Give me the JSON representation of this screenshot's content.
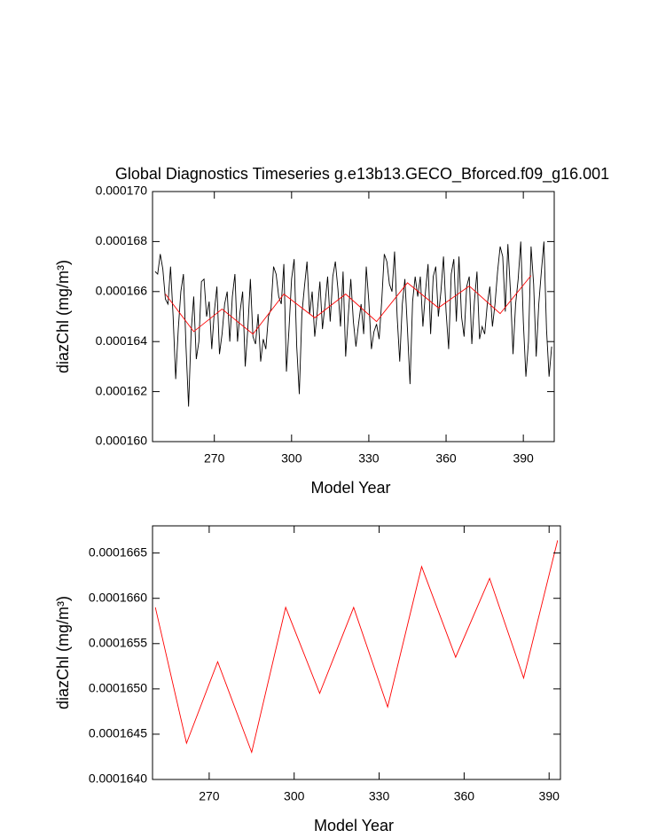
{
  "chart_data": [
    {
      "type": "line",
      "title": "Global Diagnostics Timeseries g.e13b13.GECO_Bforced.f09_g16.001",
      "xlabel": "Model Year",
      "ylabel": "diazChl (mg/m³)",
      "xlim": [
        246,
        402
      ],
      "xticks": [
        270,
        300,
        330,
        360,
        390
      ],
      "ylim": [
        0.00016,
        0.00017
      ],
      "yticks": [
        {
          "value": 0.00016,
          "label": "0.000160"
        },
        0.000162,
        0.000164,
        0.000166,
        0.000168,
        {
          "value": 0.00017,
          "label": "0.000170"
        }
      ],
      "series": [
        {
          "color": "#000000",
          "x": [
            247,
            248,
            249,
            250,
            251,
            252,
            253,
            254,
            255,
            256,
            257,
            258,
            259,
            260,
            261,
            262,
            263,
            264,
            265,
            266,
            267,
            268,
            269,
            270,
            271,
            272,
            273,
            274,
            275,
            276,
            277,
            278,
            279,
            280,
            281,
            282,
            283,
            284,
            285,
            286,
            287,
            288,
            289,
            290,
            291,
            292,
            293,
            294,
            295,
            296,
            297,
            298,
            299,
            300,
            301,
            302,
            303,
            304,
            305,
            306,
            307,
            308,
            309,
            310,
            311,
            312,
            313,
            314,
            315,
            316,
            317,
            318,
            319,
            320,
            321,
            322,
            323,
            324,
            325,
            326,
            327,
            328,
            329,
            330,
            331,
            332,
            333,
            334,
            335,
            336,
            337,
            338,
            339,
            340,
            341,
            342,
            343,
            344,
            345,
            346,
            347,
            348,
            349,
            350,
            351,
            352,
            353,
            354,
            355,
            356,
            357,
            358,
            359,
            360,
            361,
            362,
            363,
            364,
            365,
            366,
            367,
            368,
            369,
            370,
            371,
            372,
            373,
            374,
            375,
            376,
            377,
            378,
            379,
            380,
            381,
            382,
            383,
            384,
            385,
            386,
            387,
            388,
            389,
            390,
            391,
            392,
            393,
            394,
            395,
            396,
            397,
            398,
            399,
            400,
            401
          ],
          "values": [
            0.0001668,
            0.0001667,
            0.0001675,
            0.0001669,
            0.0001657,
            0.0001655,
            0.000167,
            0.000165,
            0.0001625,
            0.0001645,
            0.000166,
            0.0001667,
            0.0001638,
            0.0001614,
            0.0001644,
            0.0001658,
            0.0001633,
            0.000164,
            0.0001664,
            0.0001665,
            0.000165,
            0.0001656,
            0.0001637,
            0.0001652,
            0.0001662,
            0.0001635,
            0.0001643,
            0.0001655,
            0.000166,
            0.000164,
            0.0001658,
            0.0001667,
            0.000164,
            0.0001652,
            0.000166,
            0.000163,
            0.0001645,
            0.0001665,
            0.0001642,
            0.0001639,
            0.0001651,
            0.0001632,
            0.0001641,
            0.0001637,
            0.000165,
            0.0001653,
            0.000167,
            0.0001667,
            0.0001658,
            0.0001655,
            0.0001671,
            0.0001628,
            0.0001645,
            0.0001665,
            0.0001673,
            0.0001638,
            0.0001619,
            0.0001651,
            0.0001662,
            0.0001672,
            0.0001651,
            0.000166,
            0.0001642,
            0.0001652,
            0.0001664,
            0.0001645,
            0.0001655,
            0.0001666,
            0.0001648,
            0.0001666,
            0.0001672,
            0.0001661,
            0.0001646,
            0.0001668,
            0.0001634,
            0.000165,
            0.0001665,
            0.0001648,
            0.0001638,
            0.0001647,
            0.0001655,
            0.0001643,
            0.000167,
            0.0001656,
            0.0001637,
            0.0001644,
            0.0001647,
            0.0001641,
            0.0001656,
            0.0001675,
            0.0001672,
            0.0001663,
            0.000166,
            0.0001676,
            0.000165,
            0.0001632,
            0.0001655,
            0.0001665,
            0.0001645,
            0.0001623,
            0.0001656,
            0.0001666,
            0.0001658,
            0.0001666,
            0.0001646,
            0.000166,
            0.0001671,
            0.0001643,
            0.0001666,
            0.000167,
            0.000165,
            0.000166,
            0.0001674,
            0.0001652,
            0.0001637,
            0.0001667,
            0.0001673,
            0.0001648,
            0.0001674,
            0.000165,
            0.0001642,
            0.0001662,
            0.0001666,
            0.0001639,
            0.0001656,
            0.0001668,
            0.0001641,
            0.0001646,
            0.0001643,
            0.0001655,
            0.0001662,
            0.0001646,
            0.0001655,
            0.0001668,
            0.0001678,
            0.0001674,
            0.0001652,
            0.0001679,
            0.000166,
            0.0001635,
            0.0001655,
            0.0001665,
            0.000168,
            0.0001648,
            0.0001626,
            0.000164,
            0.0001678,
            0.0001663,
            0.0001634,
            0.0001655,
            0.0001668,
            0.000168,
            0.0001645,
            0.0001626,
            0.0001638
          ]
        },
        {
          "color": "#ff0000",
          "x": [
            251,
            262,
            273,
            285,
            297,
            309,
            321,
            333,
            345,
            357,
            369,
            381,
            393
          ],
          "values": [
            0.0001659,
            0.0001644,
            0.0001653,
            0.0001643,
            0.0001659,
            0.00016495,
            0.0001659,
            0.0001648,
            0.00016635,
            0.00016535,
            0.00016622,
            0.00016512,
            0.00016664
          ]
        }
      ]
    },
    {
      "type": "line",
      "xlabel": "Model Year",
      "ylabel": "diazChl (mg/m³)",
      "xlim": [
        250,
        394
      ],
      "xticks": [
        270,
        300,
        330,
        360,
        390
      ],
      "ylim": [
        0.000164,
        0.0001668
      ],
      "yticks": [
        {
          "value": 0.000164,
          "label": "0.0001640"
        },
        0.0001645,
        {
          "value": 0.000165,
          "label": "0.0001650"
        },
        0.0001655,
        {
          "value": 0.000166,
          "label": "0.0001660"
        },
        0.0001665
      ],
      "series": [
        {
          "color": "#ff0000",
          "x": [
            251,
            262,
            273,
            285,
            297,
            309,
            321,
            333,
            345,
            357,
            369,
            381,
            393
          ],
          "values": [
            0.0001659,
            0.0001644,
            0.0001653,
            0.0001643,
            0.0001659,
            0.00016495,
            0.0001659,
            0.0001648,
            0.00016635,
            0.00016535,
            0.00016622,
            0.00016512,
            0.00016664
          ]
        }
      ]
    }
  ]
}
